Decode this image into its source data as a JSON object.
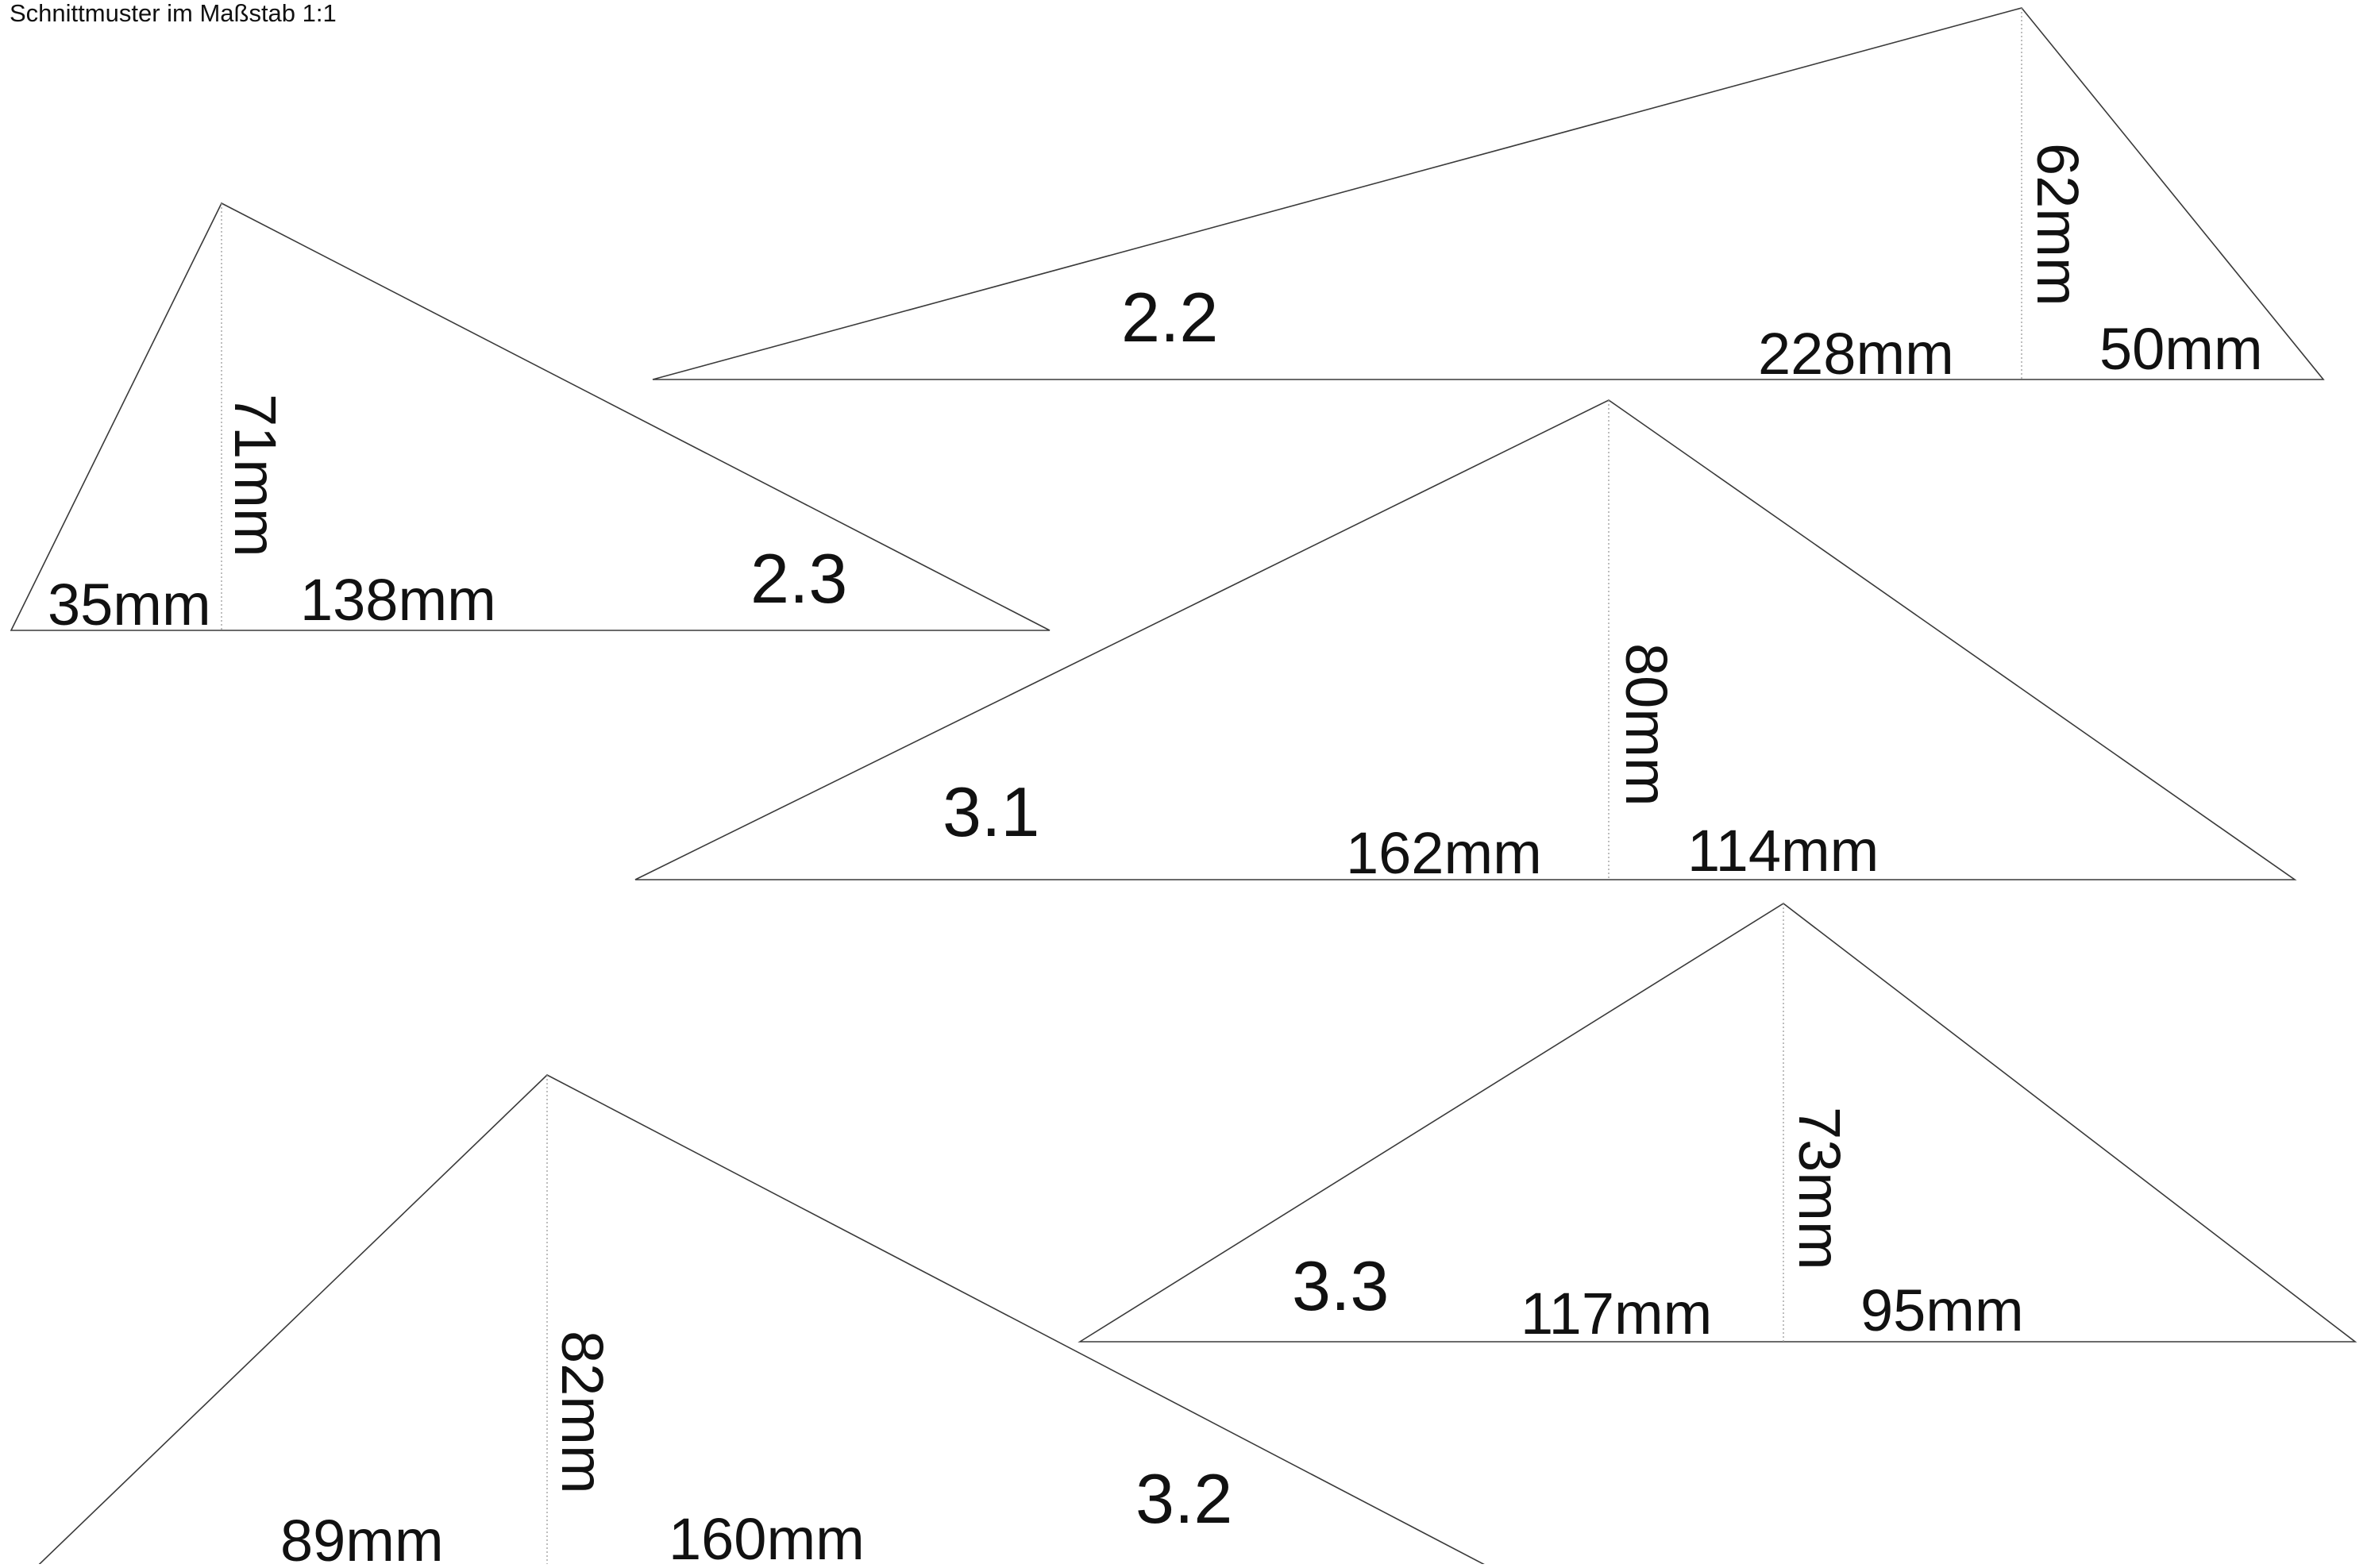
{
  "page": {
    "title": "Schnittmuster im Maßstab 1:1"
  },
  "pieces": [
    {
      "id": "2.2",
      "left": "228mm",
      "right": "50mm",
      "height": "62mm"
    },
    {
      "id": "2.3",
      "left": "35mm",
      "right": "138mm",
      "height": "71mm"
    },
    {
      "id": "3.1",
      "left": "162mm",
      "right": "114mm",
      "height": "80mm"
    },
    {
      "id": "3.3",
      "left": "117mm",
      "right": "95mm",
      "height": "73mm"
    },
    {
      "id": "3.2",
      "left": "89mm",
      "right": "160mm",
      "height": "82mm"
    }
  ]
}
